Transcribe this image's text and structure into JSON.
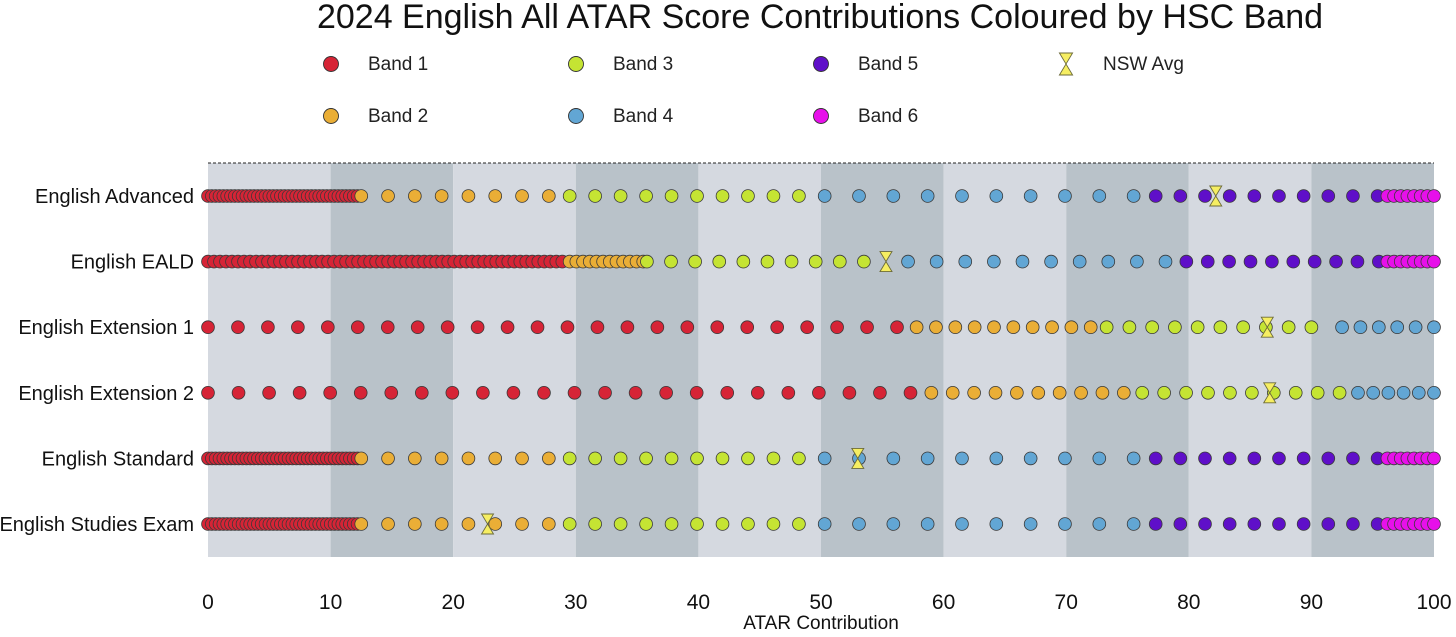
{
  "chart_data": {
    "type": "scatter",
    "title": "2024 English All ATAR Score Contributions Coloured by HSC Band",
    "xlabel": "ATAR Contribution",
    "ylabel": "",
    "xlim": [
      0,
      100
    ],
    "xticks": [
      "0",
      "10",
      "20",
      "30",
      "40",
      "50",
      "60",
      "70",
      "80",
      "90",
      "100"
    ],
    "grid": false,
    "legend_placement": "top",
    "legend": [
      {
        "key": "b1",
        "label": "Band 1",
        "color": "#d62436",
        "marker": "circle"
      },
      {
        "key": "b3",
        "label": "Band 3",
        "color": "#c5e433",
        "marker": "circle"
      },
      {
        "key": "b5",
        "label": "Band 5",
        "color": "#5f0fc9",
        "marker": "circle"
      },
      {
        "key": "avg",
        "label": "NSW Avg",
        "color": "#f6ee62",
        "marker": "hourglass"
      },
      {
        "key": "b2",
        "label": "Band 2",
        "color": "#eaae36",
        "marker": "circle"
      },
      {
        "key": "b4",
        "label": "Band 4",
        "color": "#62a6d4",
        "marker": "circle"
      },
      {
        "key": "b6",
        "label": "Band 6",
        "color": "#e710ea",
        "marker": "circle"
      }
    ],
    "band_colors": {
      "1": "#d62436",
      "2": "#eaae36",
      "3": "#c5e433",
      "4": "#62a6d4",
      "5": "#5f0fc9",
      "6": "#e710ea"
    },
    "avg_color": "#f6ee62",
    "background_stripes": {
      "light": "#d5d9e0",
      "dark": "#b9c2c9"
    },
    "courses": [
      {
        "name": "English Advanced",
        "nsw_avg": 82.2,
        "bands": [
          {
            "band": 1,
            "from": 0,
            "to": 12.2,
            "count": 40
          },
          {
            "band": 2,
            "from": 12.5,
            "to": 27.8,
            "count": 8
          },
          {
            "band": 3,
            "from": 29.5,
            "to": 48.2,
            "count": 10
          },
          {
            "band": 4,
            "from": 50.3,
            "to": 75.5,
            "count": 10
          },
          {
            "band": 5,
            "from": 77.3,
            "to": 95.4,
            "count": 10
          },
          {
            "band": 6,
            "from": 96.2,
            "to": 100,
            "count": 8
          }
        ]
      },
      {
        "name": "English EALD",
        "nsw_avg": 55.3,
        "bands": [
          {
            "band": 1,
            "from": 0,
            "to": 28.9,
            "count": 60
          },
          {
            "band": 2,
            "from": 29.5,
            "to": 35.5,
            "count": 12
          },
          {
            "band": 3,
            "from": 35.8,
            "to": 53.5,
            "count": 10
          },
          {
            "band": 4,
            "from": 57.1,
            "to": 78.1,
            "count": 10
          },
          {
            "band": 5,
            "from": 79.8,
            "to": 95.5,
            "count": 10
          },
          {
            "band": 6,
            "from": 96.2,
            "to": 100,
            "count": 8
          }
        ]
      },
      {
        "name": "English Extension 1",
        "nsw_avg": 86.4,
        "bands": [
          {
            "band": 1,
            "from": 0,
            "to": 56.2,
            "count": 24
          },
          {
            "band": 2,
            "from": 57.8,
            "to": 72.0,
            "count": 10
          },
          {
            "band": 3,
            "from": 73.3,
            "to": 90.0,
            "count": 10
          },
          {
            "band": 4,
            "from": 92.5,
            "to": 100,
            "count": 6
          }
        ]
      },
      {
        "name": "English Extension 2",
        "nsw_avg": 86.6,
        "bands": [
          {
            "band": 1,
            "from": 0,
            "to": 57.3,
            "count": 24
          },
          {
            "band": 2,
            "from": 59.0,
            "to": 74.7,
            "count": 10
          },
          {
            "band": 3,
            "from": 76.2,
            "to": 92.3,
            "count": 10
          },
          {
            "band": 4,
            "from": 93.8,
            "to": 100,
            "count": 6
          }
        ]
      },
      {
        "name": "English Standard",
        "nsw_avg": 53.0,
        "bands": [
          {
            "band": 1,
            "from": 0,
            "to": 12.2,
            "count": 40
          },
          {
            "band": 2,
            "from": 12.5,
            "to": 27.8,
            "count": 8
          },
          {
            "band": 3,
            "from": 29.5,
            "to": 48.2,
            "count": 10
          },
          {
            "band": 4,
            "from": 50.3,
            "to": 75.5,
            "count": 10
          },
          {
            "band": 5,
            "from": 77.3,
            "to": 95.4,
            "count": 10
          },
          {
            "band": 6,
            "from": 96.2,
            "to": 100,
            "count": 8
          }
        ]
      },
      {
        "name": "English Studies Exam",
        "nsw_avg": 22.8,
        "bands": [
          {
            "band": 1,
            "from": 0,
            "to": 12.2,
            "count": 40
          },
          {
            "band": 2,
            "from": 12.5,
            "to": 27.8,
            "count": 8
          },
          {
            "band": 3,
            "from": 29.5,
            "to": 48.2,
            "count": 10
          },
          {
            "band": 4,
            "from": 50.3,
            "to": 75.5,
            "count": 10
          },
          {
            "band": 5,
            "from": 77.3,
            "to": 95.4,
            "count": 10
          },
          {
            "band": 6,
            "from": 96.2,
            "to": 100,
            "count": 8
          }
        ]
      }
    ]
  }
}
